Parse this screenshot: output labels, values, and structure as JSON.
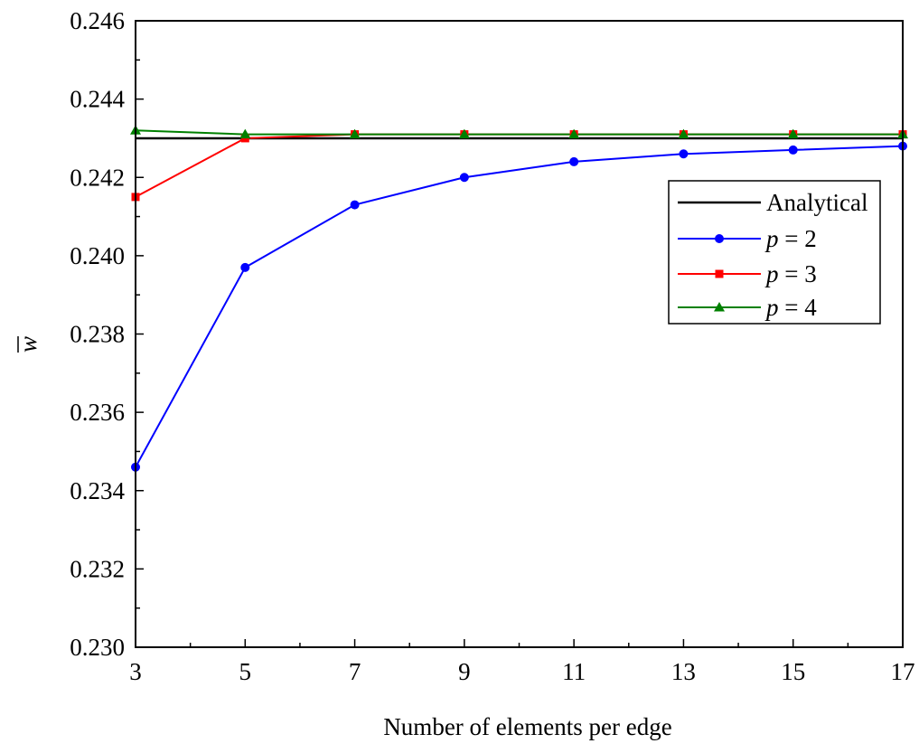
{
  "chart_data": {
    "type": "line",
    "xlabel": "Number of elements per edge",
    "ylabel": "w",
    "ylabel_overbar": true,
    "xlim": [
      3,
      17
    ],
    "ylim": [
      0.23,
      0.246
    ],
    "x_ticks": [
      3,
      5,
      7,
      9,
      11,
      13,
      15,
      17
    ],
    "x_tick_labels": [
      "3",
      "5",
      "7",
      "9",
      "11",
      "13",
      "15",
      "17"
    ],
    "y_ticks": [
      0.23,
      0.232,
      0.234,
      0.236,
      0.238,
      0.24,
      0.242,
      0.244,
      0.246
    ],
    "y_tick_labels": [
      "0.230",
      "0.232",
      "0.234",
      "0.236",
      "0.238",
      "0.240",
      "0.242",
      "0.244",
      "0.246"
    ],
    "grid": false,
    "legend_position": "right",
    "x": [
      3,
      5,
      7,
      9,
      11,
      13,
      15,
      17
    ],
    "series": [
      {
        "name": "Analytical",
        "legend_label": "Analytical",
        "color": "#000000",
        "marker": "none",
        "values": [
          0.243,
          0.243,
          0.243,
          0.243,
          0.243,
          0.243,
          0.243,
          0.243
        ]
      },
      {
        "name": "p = 2",
        "legend_italic": "p",
        "legend_rest": " = 2",
        "color": "#0000ff",
        "marker": "circle",
        "values": [
          0.2346,
          0.2397,
          0.2413,
          0.242,
          0.2424,
          0.2426,
          0.2427,
          0.2428
        ]
      },
      {
        "name": "p = 3",
        "legend_italic": "p",
        "legend_rest": " = 3",
        "color": "#ff0000",
        "marker": "square",
        "values": [
          0.2415,
          0.243,
          0.2431,
          0.2431,
          0.2431,
          0.2431,
          0.2431,
          0.2431
        ]
      },
      {
        "name": "p = 4",
        "legend_italic": "p",
        "legend_rest": " = 4",
        "color": "#008000",
        "marker": "triangle",
        "values": [
          0.2432,
          0.2431,
          0.2431,
          0.2431,
          0.2431,
          0.2431,
          0.2431,
          0.2431
        ]
      }
    ]
  }
}
